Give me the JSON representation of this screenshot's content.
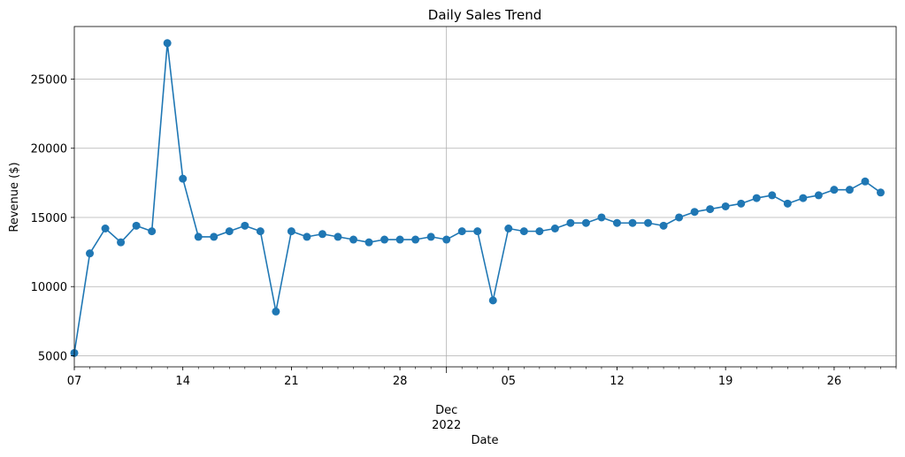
{
  "chart_data": {
    "type": "line",
    "title": "Daily Sales Trend",
    "xlabel": "Date",
    "ylabel": "Revenue ($)",
    "x_start": "2022-11-07",
    "x_end": "2022-12-30",
    "ylim": [
      4200,
      28800
    ],
    "grid": true,
    "legend": "none",
    "colors": {
      "series": "#1f77b4",
      "grid": "#b0b0b0",
      "axis": "#000000"
    },
    "x_ticks": [
      {
        "date": "2022-11-07",
        "label": "07"
      },
      {
        "date": "2022-11-14",
        "label": "14"
      },
      {
        "date": "2022-11-21",
        "label": "21"
      },
      {
        "date": "2022-11-28",
        "label": "28"
      },
      {
        "date": "2022-12-05",
        "label": "05"
      },
      {
        "date": "2022-12-12",
        "label": "12"
      },
      {
        "date": "2022-12-19",
        "label": "19"
      },
      {
        "date": "2022-12-26",
        "label": "26"
      }
    ],
    "x_major_tick": {
      "date": "2022-12-01",
      "label_line1": "Dec",
      "label_line2": "2022"
    },
    "y_ticks": [
      5000,
      10000,
      15000,
      20000,
      25000
    ],
    "series": [
      {
        "points": [
          [
            "2022-11-07",
            5200
          ],
          [
            "2022-11-08",
            12400
          ],
          [
            "2022-11-09",
            14200
          ],
          [
            "2022-11-10",
            13200
          ],
          [
            "2022-11-11",
            14400
          ],
          [
            "2022-11-12",
            14000
          ],
          [
            "2022-11-13",
            27600
          ],
          [
            "2022-11-14",
            17800
          ],
          [
            "2022-11-15",
            13600
          ],
          [
            "2022-11-16",
            13600
          ],
          [
            "2022-11-17",
            14000
          ],
          [
            "2022-11-18",
            14400
          ],
          [
            "2022-11-19",
            14000
          ],
          [
            "2022-11-20",
            8200
          ],
          [
            "2022-11-21",
            14000
          ],
          [
            "2022-11-22",
            13600
          ],
          [
            "2022-11-23",
            13800
          ],
          [
            "2022-11-24",
            13600
          ],
          [
            "2022-11-25",
            13400
          ],
          [
            "2022-11-26",
            13200
          ],
          [
            "2022-11-27",
            13400
          ],
          [
            "2022-11-28",
            13400
          ],
          [
            "2022-11-29",
            13400
          ],
          [
            "2022-11-30",
            13600
          ],
          [
            "2022-12-01",
            13400
          ],
          [
            "2022-12-02",
            14000
          ],
          [
            "2022-12-03",
            14000
          ],
          [
            "2022-12-04",
            9000
          ],
          [
            "2022-12-05",
            14200
          ],
          [
            "2022-12-06",
            14000
          ],
          [
            "2022-12-07",
            14000
          ],
          [
            "2022-12-08",
            14200
          ],
          [
            "2022-12-09",
            14600
          ],
          [
            "2022-12-10",
            14600
          ],
          [
            "2022-12-11",
            15000
          ],
          [
            "2022-12-12",
            14600
          ],
          [
            "2022-12-13",
            14600
          ],
          [
            "2022-12-14",
            14600
          ],
          [
            "2022-12-15",
            14400
          ],
          [
            "2022-12-16",
            15000
          ],
          [
            "2022-12-17",
            15400
          ],
          [
            "2022-12-18",
            15600
          ],
          [
            "2022-12-19",
            15800
          ],
          [
            "2022-12-20",
            16000
          ],
          [
            "2022-12-21",
            16400
          ],
          [
            "2022-12-22",
            16600
          ],
          [
            "2022-12-23",
            16000
          ],
          [
            "2022-12-24",
            16400
          ],
          [
            "2022-12-25",
            16600
          ],
          [
            "2022-12-26",
            17000
          ],
          [
            "2022-12-27",
            17000
          ],
          [
            "2022-12-28",
            17600
          ],
          [
            "2022-12-29",
            16800
          ]
        ]
      }
    ]
  }
}
